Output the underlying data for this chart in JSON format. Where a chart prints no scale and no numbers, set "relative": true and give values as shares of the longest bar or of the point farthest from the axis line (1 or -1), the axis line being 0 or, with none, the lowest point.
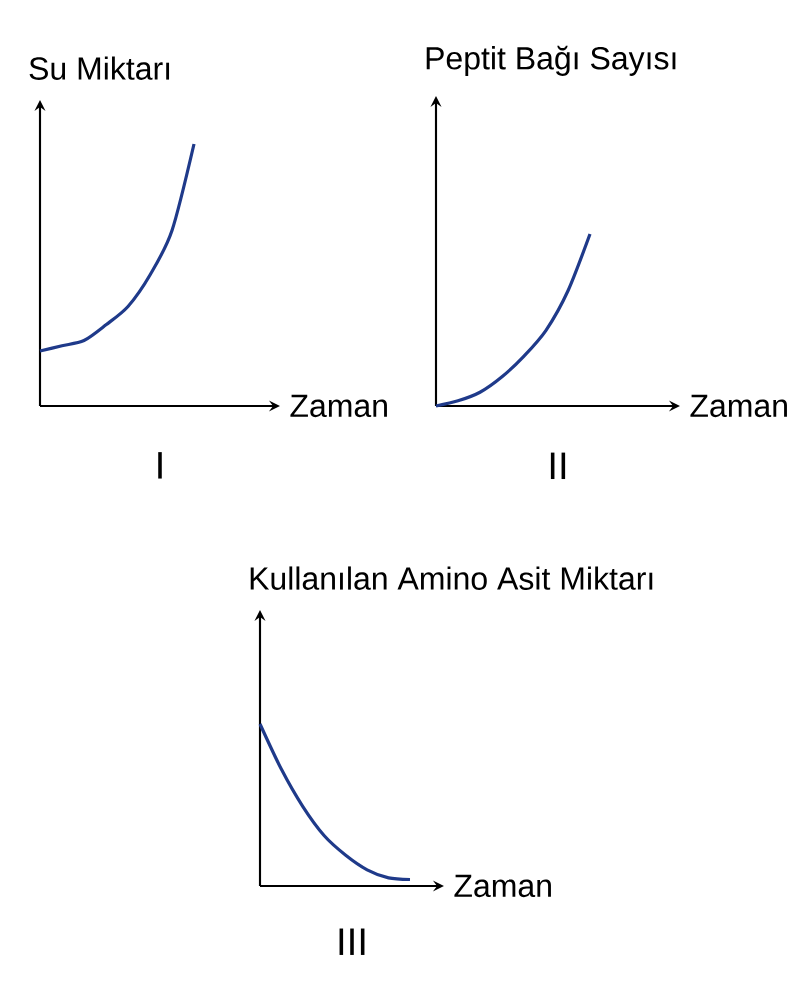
{
  "chart_data": [
    {
      "type": "line",
      "relative": true,
      "ylabel": "Su Miktarı",
      "xlabel": "Zaman",
      "annotations": [
        "I"
      ],
      "categories": [
        null,
        null,
        null,
        null,
        null,
        null,
        null,
        null
      ],
      "color": "#1f3a8a",
      "values": [
        0.21,
        0.23,
        0.25,
        0.31,
        0.38,
        0.5,
        0.67,
        1.0
      ]
    },
    {
      "type": "line",
      "relative": true,
      "ylabel": "Peptit Bağı Sayısı",
      "xlabel": "Zaman",
      "annotations": [
        "II"
      ],
      "categories": [
        null,
        null,
        null,
        null,
        null,
        null,
        null,
        null
      ],
      "color": "#1f3a8a",
      "values": [
        0.0,
        0.03,
        0.08,
        0.17,
        0.29,
        0.44,
        0.67,
        1.0
      ]
    },
    {
      "type": "line",
      "relative": true,
      "ylabel": "Kullanılan Amino Asit Miktarı",
      "xlabel": "Zaman",
      "annotations": [
        "III"
      ],
      "categories": [
        null,
        null,
        null,
        null,
        null,
        null,
        null,
        null
      ],
      "color": "#1f3a8a",
      "values": [
        1.0,
        0.72,
        0.49,
        0.31,
        0.19,
        0.1,
        0.05,
        0.04
      ]
    }
  ]
}
